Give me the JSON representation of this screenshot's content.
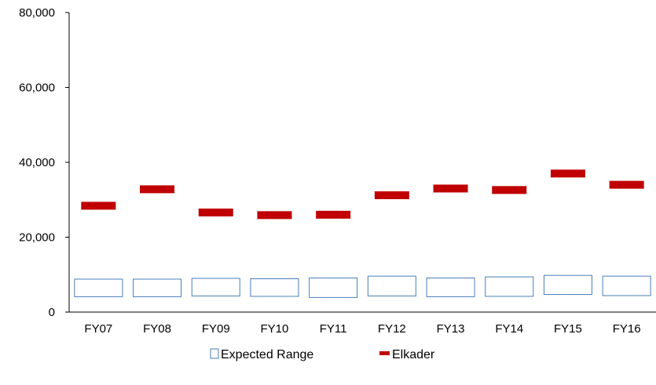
{
  "chart_data": {
    "type": "range-marker",
    "categories": [
      "FY07",
      "FY08",
      "FY09",
      "FY10",
      "FY11",
      "FY12",
      "FY13",
      "FY14",
      "FY15",
      "FY16"
    ],
    "series": [
      {
        "name": "Expected Range",
        "kind": "range-box",
        "color": "#4a7ebb",
        "low": [
          4100,
          4100,
          4300,
          4200,
          3900,
          4300,
          4100,
          4200,
          4700,
          4400
        ],
        "high": [
          8800,
          8800,
          9000,
          8900,
          9100,
          9600,
          9100,
          9400,
          9800,
          9600
        ]
      },
      {
        "name": "Elkader",
        "kind": "marker",
        "color": "#c00000",
        "values": [
          28400,
          32800,
          26600,
          25900,
          26000,
          31200,
          33000,
          32600,
          37000,
          34000
        ]
      }
    ],
    "y_ticks": [
      "0",
      "20,000",
      "40,000",
      "60,000",
      "80,000"
    ],
    "ylim": [
      0,
      80000
    ],
    "grid": false,
    "legend_position": "bottom"
  }
}
